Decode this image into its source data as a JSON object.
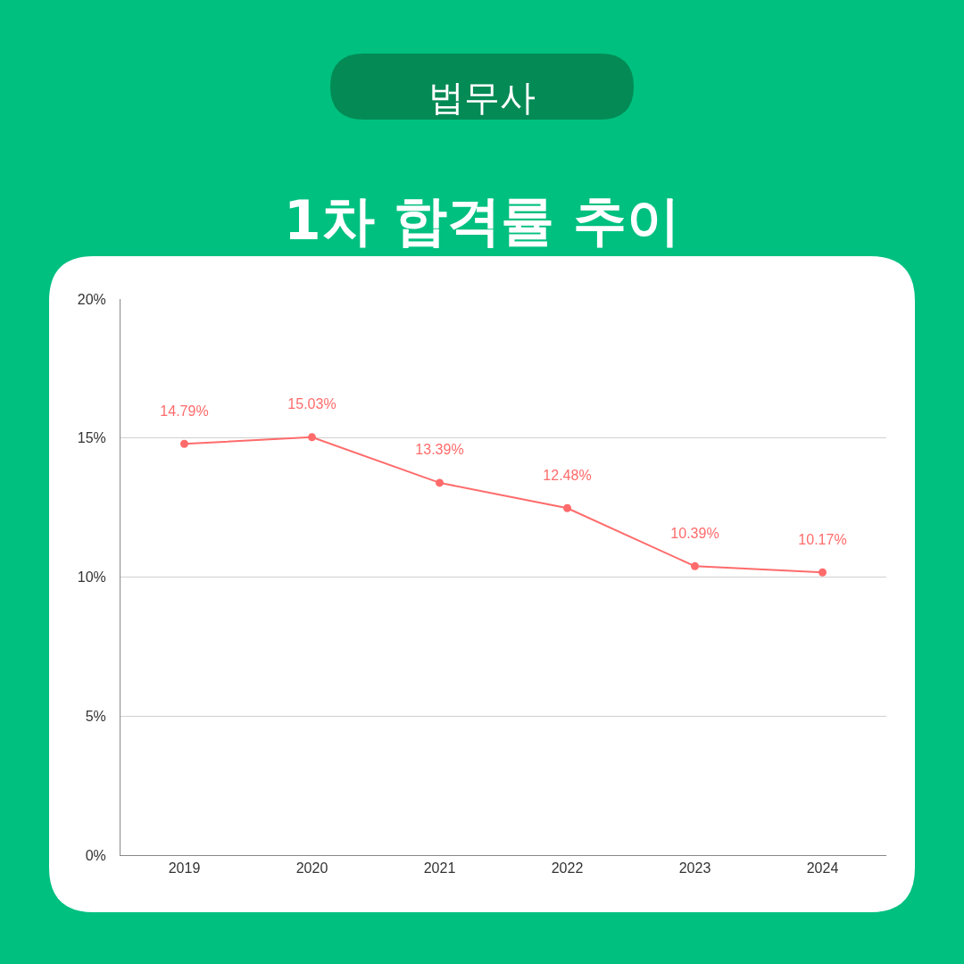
{
  "chart_data": {
    "type": "line",
    "title": "1차 합격률 추이",
    "subtitle": "법무사",
    "categories": [
      "2019",
      "2020",
      "2021",
      "2022",
      "2023",
      "2024"
    ],
    "series": [
      {
        "color": "#ff6b6b",
        "values": [
          14.79,
          15.03,
          13.39,
          12.48,
          10.39,
          10.17
        ],
        "value_labels": [
          "14.79%",
          "15.03%",
          "13.39%",
          "12.48%",
          "10.39%",
          "10.17%"
        ]
      }
    ],
    "ylim": [
      0,
      20
    ],
    "yticks": [
      {
        "value": 0,
        "label": "0%"
      },
      {
        "value": 5,
        "label": "5%"
      },
      {
        "value": 10,
        "label": "10%"
      },
      {
        "value": 15,
        "label": "15%"
      },
      {
        "value": 20,
        "label": "20%"
      }
    ],
    "grid": "y",
    "marker": "circle",
    "line_style": "solid"
  }
}
